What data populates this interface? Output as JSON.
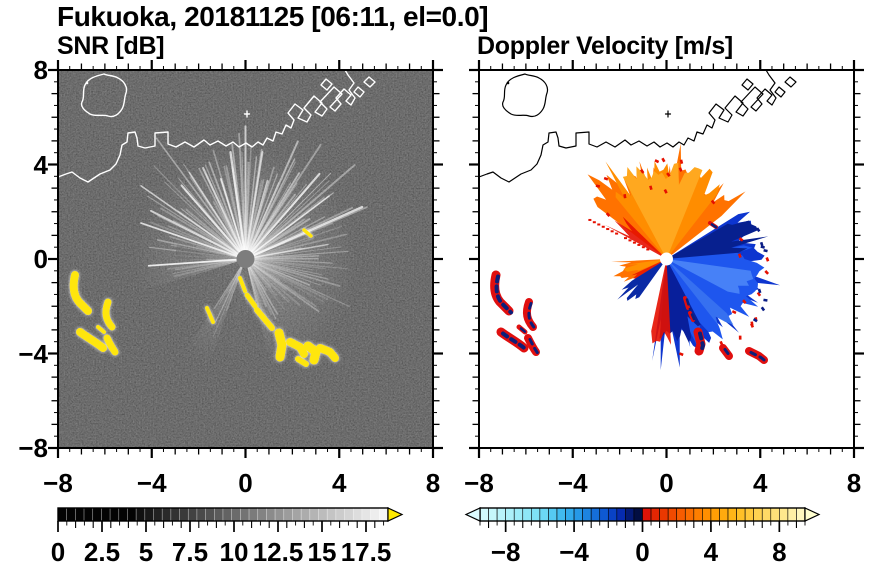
{
  "title": "Fukuoka, 20181125 [06:11, el=0.0]",
  "panels": [
    {
      "key": "snr",
      "subtitle": "SNR [dB]",
      "x_tick_labels": [
        "−8",
        "−4",
        "0",
        "4",
        "8"
      ],
      "x_tick_values": [
        -8,
        -4,
        0,
        4,
        8
      ],
      "y_tick_labels": [
        "8",
        "4",
        "0",
        "−4",
        "−8"
      ],
      "y_tick_values": [
        8,
        4,
        0,
        -4,
        -8
      ],
      "colorbar": {
        "tick_labels": [
          "0",
          "2.5",
          "5",
          "7.5",
          "10",
          "12.5",
          "15",
          "17.5"
        ],
        "tick_values": [
          0,
          2.5,
          5,
          7.5,
          10,
          12.5,
          15,
          17.5
        ],
        "range": [
          0,
          18.75
        ],
        "colormap": "grayscale black to white",
        "over_arrow_color": "#ffe900"
      }
    },
    {
      "key": "velocity",
      "subtitle": "Doppler Velocity [m/s]",
      "x_tick_labels": [
        "−8",
        "−4",
        "0",
        "4",
        "8"
      ],
      "x_tick_values": [
        -8,
        -4,
        0,
        4,
        8
      ],
      "y_tick_labels": [],
      "y_tick_values": [],
      "colorbar": {
        "tick_labels": [
          "−8",
          "−4",
          "0",
          "4",
          "8"
        ],
        "tick_values": [
          -8,
          -4,
          0,
          4,
          8
        ],
        "range": [
          -9.5,
          9.5
        ],
        "colormap": "diverging: pale cyan to blue to dark navy (negative) | red to orange to pale yellow (positive)",
        "under_arrow_color": "#dcfbff",
        "over_arrow_color": "#ffffd0"
      }
    }
  ],
  "colors": {
    "figure_background": "#ffffff",
    "snr_background": "#000000",
    "snr_coastline": "#ffffff",
    "velocity_coastline": "#000000",
    "snr_saturated_echo": "#ffe60a",
    "velocity_positive_fan": "#ff7300",
    "velocity_negative_fan": "#0d35cf",
    "clutter_red": "#e00f0f",
    "clutter_navy": "#0c1f7a",
    "text": "#000000"
  },
  "chart_data": [
    {
      "type": "heatmap",
      "title": "SNR [dB]",
      "xlim": [
        -8,
        8
      ],
      "ylim": [
        -8,
        8
      ],
      "x_ticks": [
        -8,
        -4,
        0,
        4,
        8
      ],
      "y_ticks": [
        -8,
        -4,
        0,
        4,
        8
      ],
      "colorbar_range": [
        0,
        18.75
      ],
      "colorbar_ticks": [
        0,
        2.5,
        5,
        7.5,
        10,
        12.5,
        15,
        17.5
      ],
      "colorbar_over_color": "yellow",
      "grid": false,
      "legend": "horizontal grayscale colorbar below axis",
      "description": "Radar PPI at the origin: black noisy background, bright white radial ray burst around the radar (dark shadow wedges toward SW and S), gray disk at center, saturated yellow (>18.75 dB) echo band running SE of the radar near (1 to 3.5, -2.5 to -4) plus isolated yellow patches W near (-6.5, -1 to -3.5), white Hakata Bay coastline with harbor piers in the N and an island near (-6, 7)"
    },
    {
      "type": "heatmap",
      "title": "Doppler Velocity [m/s]",
      "xlim": [
        -8,
        8
      ],
      "ylim": [
        -8,
        8
      ],
      "x_ticks": [
        -8,
        -4,
        0,
        4,
        8
      ],
      "y_ticks": [
        -8,
        -4,
        0,
        4,
        8
      ],
      "colorbar_range": [
        -9.5,
        9.5
      ],
      "colorbar_ticks": [
        -8,
        -4,
        0,
        4,
        8
      ],
      "grid": false,
      "legend": "horizontal diverging colorbar below axis with arrows both ends",
      "description": "White background; orange fan (positive velocity about +2 to +6 m/s) in sector N of radar, blue fan (negative velocity about -2 to -8 m/s) in sector E to S of radar with dark navy and light blue streaks, small orange wedge W of center, dotted red streak toward NW, red/navy ground-clutter patches SE near (1.5 to 3, -3 to -4) and W near (-6.5, -1 to -3.5), black coastline overlay, white hole at radar position"
    }
  ]
}
